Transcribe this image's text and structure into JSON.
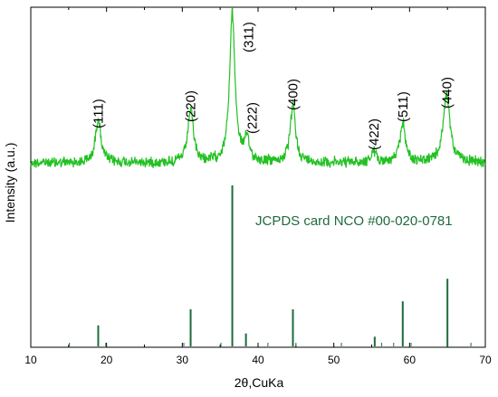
{
  "chart_data": {
    "type": "line",
    "xlabel": "2θ,CuKa",
    "ylabel": "Intensity (a.u.)",
    "xlim": [
      10,
      70
    ],
    "x_ticks": [
      "10",
      "20",
      "30",
      "40",
      "50",
      "60",
      "70"
    ],
    "grid": false,
    "colors": {
      "pattern": "#22c122",
      "reference": "#1e6b3c",
      "axis": "#000000"
    },
    "annotation": "JCPDS card NCO #00-020-0781",
    "peaks": [
      {
        "label": "(111)",
        "x": 18.9,
        "intensity": 0.3
      },
      {
        "label": "(220)",
        "x": 31.1,
        "intensity": 0.36
      },
      {
        "label": "(311)",
        "x": 36.6,
        "intensity": 1.0
      },
      {
        "label": "(222)",
        "x": 38.5,
        "intensity": 0.14
      },
      {
        "label": "(400)",
        "x": 44.6,
        "intensity": 0.38
      },
      {
        "label": "(422)",
        "x": 55.3,
        "intensity": 0.07
      },
      {
        "label": "(511)",
        "x": 59.1,
        "intensity": 0.27
      },
      {
        "label": "(440)",
        "x": 64.9,
        "intensity": 0.45
      }
    ],
    "reference_lines": [
      {
        "x": 18.9,
        "intensity": 0.13
      },
      {
        "x": 31.1,
        "intensity": 0.23
      },
      {
        "x": 36.6,
        "intensity": 1.0
      },
      {
        "x": 38.4,
        "intensity": 0.08
      },
      {
        "x": 44.6,
        "intensity": 0.23
      },
      {
        "x": 55.4,
        "intensity": 0.06
      },
      {
        "x": 59.1,
        "intensity": 0.28
      },
      {
        "x": 65.0,
        "intensity": 0.42
      }
    ]
  }
}
